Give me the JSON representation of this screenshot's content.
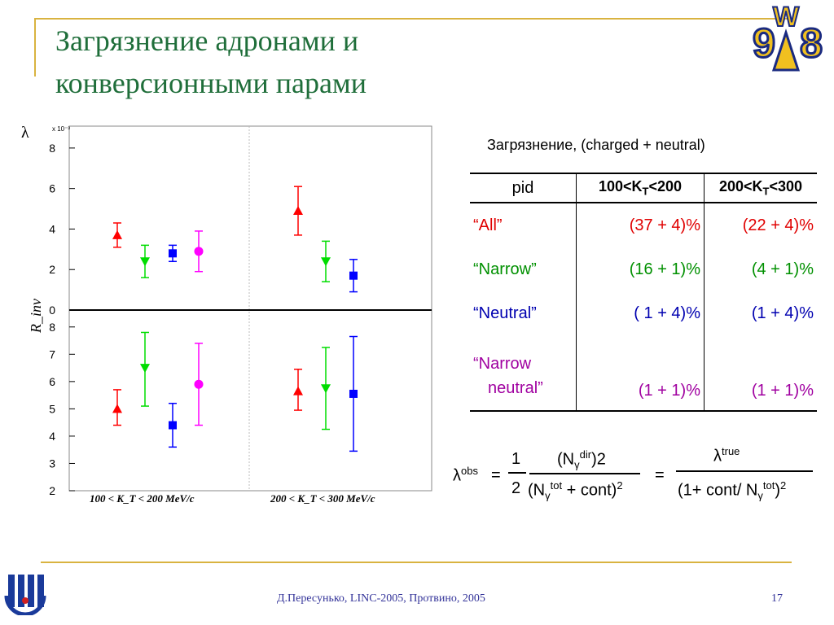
{
  "slide": {
    "title_line1": "Загрязнение адронами и",
    "title_line2": "конверсионными парами",
    "logo_text": {
      "top": "W",
      "left": "9",
      "right": "8"
    },
    "footer": "Д.Пересунько, LINC-2005, Протвино, 2005",
    "page_number": "17"
  },
  "chart_data": [
    {
      "type": "scatter",
      "title": "",
      "ylabel": "λ",
      "y_exponent": "x 10⁻³",
      "ylim": [
        0,
        9
      ],
      "yticks": [
        "0",
        "2",
        "4",
        "6",
        "8"
      ],
      "categories": [
        "100 < K_T < 200 MeV/c",
        "200 < K_T < 300 MeV/c"
      ],
      "series": [
        {
          "marker": "triangle-up",
          "color": "#ff0000",
          "points": [
            {
              "kt": "100-200",
              "y": 3.7,
              "err": [
                0.6,
                0.6
              ]
            },
            {
              "kt": "200-300",
              "y": 4.9,
              "err": [
                1.2,
                1.2
              ]
            }
          ]
        },
        {
          "marker": "triangle-down",
          "color": "#00dd00",
          "points": [
            {
              "kt": "100-200",
              "y": 2.4,
              "err": [
                0.8,
                0.8
              ]
            },
            {
              "kt": "200-300",
              "y": 2.4,
              "err": [
                1.0,
                1.0
              ]
            }
          ]
        },
        {
          "marker": "square",
          "color": "#0000ff",
          "points": [
            {
              "kt": "100-200",
              "y": 2.8,
              "err": [
                0.4,
                0.4
              ]
            },
            {
              "kt": "200-300",
              "y": 1.7,
              "err": [
                0.8,
                0.8
              ]
            }
          ]
        },
        {
          "marker": "circle",
          "color": "#ff00ff",
          "points": [
            {
              "kt": "100-200",
              "y": 2.9,
              "err": [
                1.0,
                1.0
              ]
            }
          ]
        }
      ]
    },
    {
      "type": "scatter",
      "title": "",
      "ylabel": "R_inv",
      "ylim": [
        2,
        8.5
      ],
      "yticks": [
        "2",
        "3",
        "4",
        "5",
        "6",
        "7",
        "8"
      ],
      "xlabels": [
        "100 < K_T < 200 MeV/c",
        "200 < K_T < 300 MeV/c"
      ],
      "series": [
        {
          "marker": "triangle-up",
          "color": "#ff0000",
          "points": [
            {
              "kt": "100-200",
              "y": 5.0,
              "err": [
                0.6,
                0.7
              ]
            },
            {
              "kt": "200-300",
              "y": 5.65,
              "err": [
                0.7,
                0.8
              ]
            }
          ]
        },
        {
          "marker": "triangle-down",
          "color": "#00dd00",
          "points": [
            {
              "kt": "100-200",
              "y": 6.5,
              "err": [
                1.4,
                1.3
              ]
            },
            {
              "kt": "200-300",
              "y": 5.75,
              "err": [
                1.5,
                1.5
              ]
            }
          ]
        },
        {
          "marker": "square",
          "color": "#0000ff",
          "points": [
            {
              "kt": "100-200",
              "y": 4.4,
              "err": [
                0.8,
                0.8
              ]
            },
            {
              "kt": "200-300",
              "y": 5.55,
              "err": [
                2.1,
                2.1
              ]
            }
          ]
        },
        {
          "marker": "circle",
          "color": "#ff00ff",
          "points": [
            {
              "kt": "100-200",
              "y": 5.9,
              "err": [
                1.5,
                1.5
              ]
            }
          ]
        }
      ]
    }
  ],
  "table": {
    "caption": "Загрязнение, (charged + neutral)",
    "headers": [
      "pid",
      "100<K",
      "T",
      "<200",
      "200<K",
      "T",
      "<300"
    ],
    "rows": [
      {
        "label": "“All”",
        "v1": "(37 + 4)%",
        "v2": "(22 + 4)%"
      },
      {
        "label": "“Narrow”",
        "v1": "(16 + 1)%",
        "v2": "(4 + 1)%"
      },
      {
        "label": "“Neutral”",
        "v1": "( 1 + 4)%",
        "v2": "(1 + 4)%"
      },
      {
        "label_a": "“Narrow",
        "label_b": "neutral”",
        "v1": "(1 + 1)%",
        "v2": "(1 + 1)%"
      }
    ]
  },
  "formula": {
    "lambda": "λ",
    "obs": "obs",
    "eq": "=",
    "one": "1",
    "two": "2",
    "num_open": "(N",
    "gamma": "γ",
    "dir": "dir",
    "num_close": ")2",
    "den_open": "(N",
    "tot": "tot",
    "den_close": " + cont)",
    "sq": "2",
    "true": "true",
    "rhs_den": "(1+ cont/ N",
    "rhs_close": ")",
    "rhs_sq": "2"
  }
}
